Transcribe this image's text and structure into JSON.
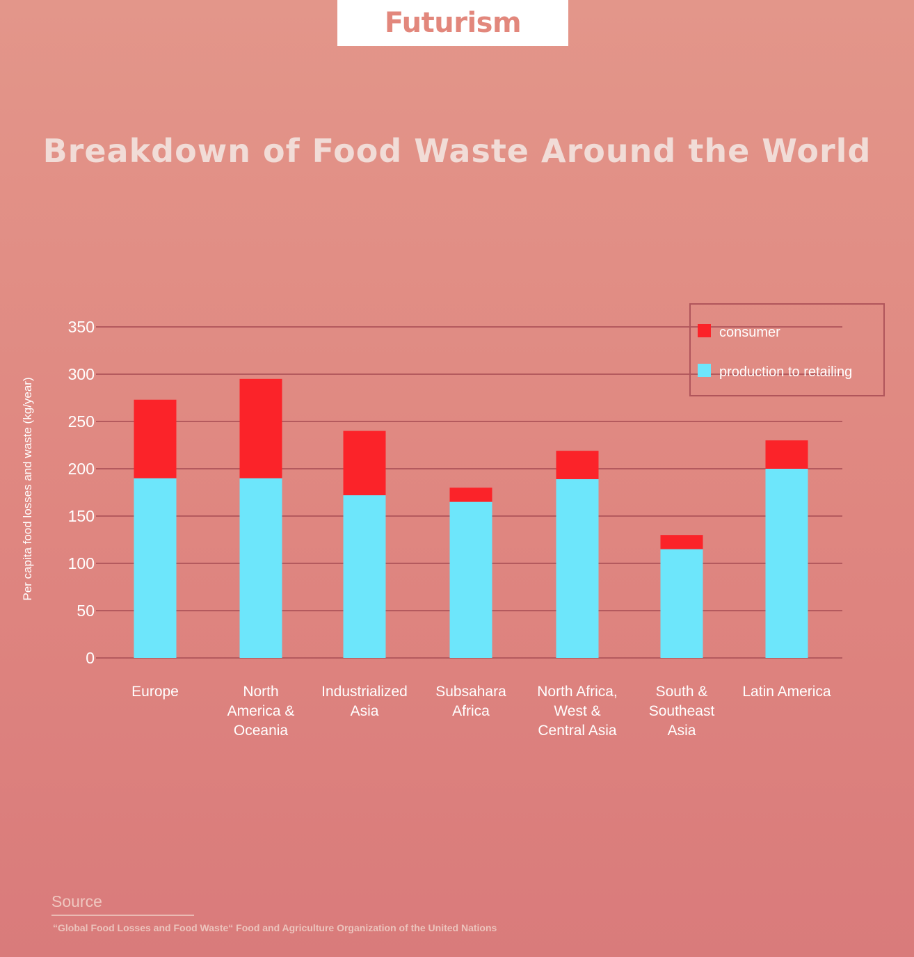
{
  "brand": {
    "logo_text": "Futurism"
  },
  "title": "Breakdown of Food Waste Around the World",
  "colors": {
    "consumer": "#fb2329",
    "production": "#6de6fb",
    "grid": "#b45a5e",
    "text": "#ffffff"
  },
  "chart_data": {
    "type": "bar",
    "stacked": true,
    "title": "Breakdown of Food Waste Around the World",
    "ylabel": "Per capita food losses and waste (kg/year)",
    "xlabel": "",
    "ylim": [
      0,
      350
    ],
    "yticks": [
      0,
      50,
      100,
      150,
      200,
      250,
      300,
      350
    ],
    "grid": true,
    "legend_position": "top-right",
    "categories": [
      [
        "Europe"
      ],
      [
        "North",
        "America &",
        "Oceania"
      ],
      [
        "Industrialized",
        "Asia"
      ],
      [
        "Subsahara",
        "Africa"
      ],
      [
        "North Africa,",
        "West &",
        "Central Asia"
      ],
      [
        "South &",
        "Southeast",
        "Asia"
      ],
      [
        "Latin America"
      ]
    ],
    "series": [
      {
        "name": "production to retailing",
        "color": "#6de6fb",
        "values": [
          190,
          190,
          172,
          165,
          189,
          115,
          200
        ]
      },
      {
        "name": "consumer",
        "color": "#fb2329",
        "values": [
          83,
          105,
          68,
          15,
          30,
          15,
          30
        ]
      }
    ],
    "legend_order": [
      "consumer",
      "production to retailing"
    ]
  },
  "source": {
    "label": "Source",
    "text": "“Global Food Losses and Food Waste“  Food and Agriculture Organization of the United Nations"
  }
}
